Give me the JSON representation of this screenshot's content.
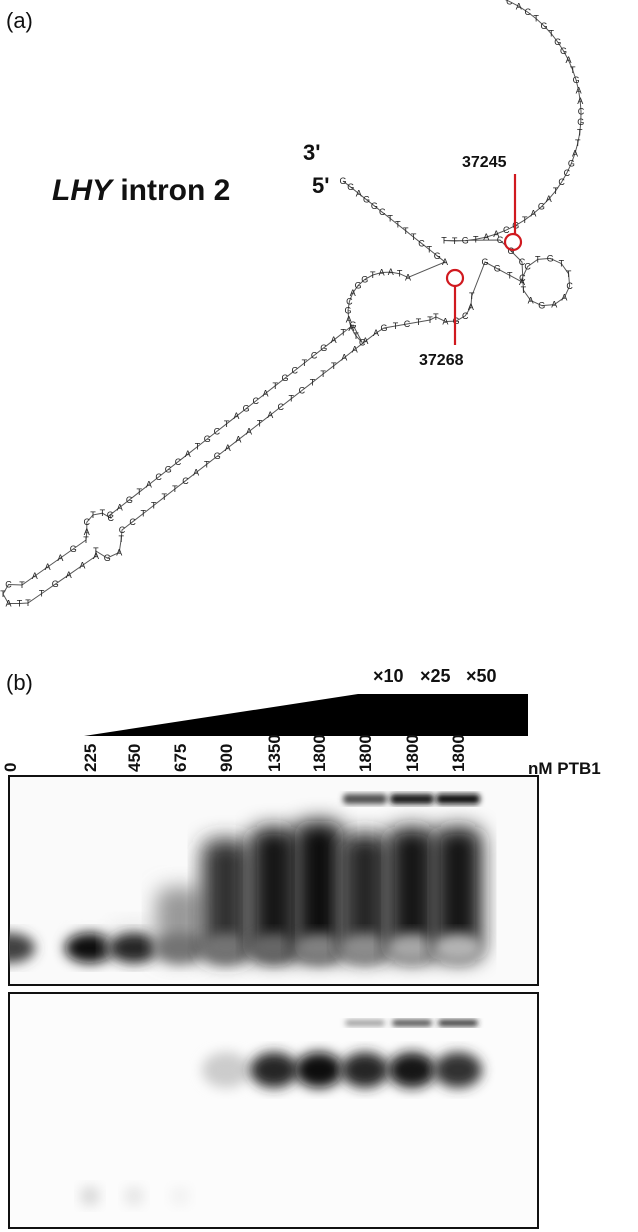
{
  "panel_a": {
    "letter": "(a)",
    "title_gene": "LHY",
    "title_rest": " intron 2",
    "end3": "3'",
    "end5": "5'",
    "site_top": "37245",
    "site_bottom": "37268",
    "highlight_color": "#d0191f",
    "nucleotides": [
      "G",
      "G",
      "A",
      "G",
      "G",
      "C",
      "T",
      "T",
      "T",
      "T",
      "C",
      "T",
      "G",
      "A",
      "A",
      "T",
      "A",
      "A",
      "T",
      "G",
      "G",
      "A",
      "C",
      "G",
      "A",
      "A",
      "T",
      "C",
      "G",
      "T",
      "A",
      "G",
      "C",
      "T",
      "C",
      "G",
      "T",
      "A",
      "C",
      "G",
      "A",
      "T",
      "C",
      "G",
      "T",
      "A",
      "C",
      "G",
      "C",
      "A",
      "T",
      "G",
      "A",
      "C",
      "C",
      "T",
      "T",
      "C",
      "A",
      "T",
      "G",
      "A",
      "A",
      "A",
      "T",
      "C",
      "T",
      "A",
      "T",
      "T",
      "T",
      "G",
      "A",
      "A",
      "A",
      "T",
      "G",
      "A",
      "T",
      "C",
      "C",
      "T",
      "T",
      "T",
      "T",
      "C",
      "A",
      "T",
      "G",
      "A",
      "A",
      "A",
      "T",
      "A",
      "C",
      "T",
      "C",
      "T",
      "T",
      "T",
      "A",
      "A",
      "A",
      "A",
      "G",
      "T",
      "C",
      "T",
      "T",
      "T",
      "A",
      "G",
      "C",
      "A",
      "T",
      "G",
      "G",
      "T",
      "A",
      "C",
      "C",
      "T",
      "G",
      "T",
      "T",
      "C",
      "A",
      "A",
      "G",
      "A",
      "T",
      "C",
      "G",
      "C",
      "T",
      "T",
      "G",
      "T",
      "A",
      "A",
      "C",
      "G",
      "T",
      "A",
      "G",
      "A",
      "T",
      "C",
      "C",
      "G",
      "A",
      "T",
      "T",
      "G",
      "C",
      "A",
      "A",
      "G",
      "T",
      "A",
      "G",
      "G",
      "T",
      "G",
      "T",
      "C",
      "A",
      "C",
      "G",
      "A",
      "A",
      "G",
      "G",
      "C",
      "T",
      "T"
    ]
  },
  "panel_b": {
    "letter": "(b)",
    "competitors": [
      "×10",
      "×25",
      "×50"
    ],
    "lanes": [
      "0",
      "225",
      "450",
      "675",
      "900",
      "1350",
      "1800",
      "1800",
      "1800",
      "1800"
    ],
    "unit_label": "nM PTB1",
    "upper_gel": {
      "free_band_intensity": [
        0.75,
        0.95,
        0.85,
        0.55,
        0.55,
        0.6,
        0.5,
        0.45,
        0.35,
        0.3
      ],
      "complex_smear_intensity": [
        0.0,
        0.05,
        0.1,
        0.4,
        0.8,
        0.9,
        0.95,
        0.85,
        0.9,
        0.9
      ],
      "well_band_intensity": [
        0.0,
        0.0,
        0.0,
        0.0,
        0.0,
        0.0,
        0.0,
        0.7,
        0.9,
        0.95
      ]
    },
    "lower_gel": {
      "complex_band_intensity": [
        0.0,
        0.15,
        0.1,
        0.05,
        0.2,
        0.85,
        0.95,
        0.85,
        0.9,
        0.8
      ],
      "well_band_intensity": [
        0.0,
        0.0,
        0.0,
        0.0,
        0.0,
        0.0,
        0.0,
        0.4,
        0.75,
        0.85
      ]
    }
  }
}
